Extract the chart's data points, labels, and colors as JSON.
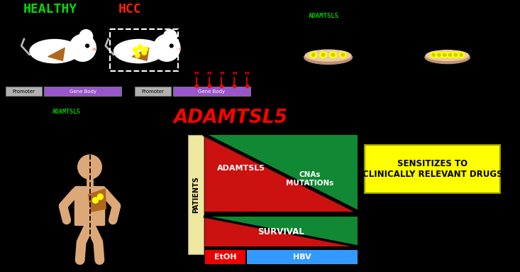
{
  "bg_color": "#000000",
  "title_healthy": "HEALTHY",
  "title_hcc": "HCC",
  "title_healthy_color": "#00dd00",
  "title_hcc_color": "#ff2200",
  "adamtsl5_top_color": "#00cc00",
  "adamtsl5_label": "ADAMTSL5",
  "adamtsl5_big_color": "#ff0000",
  "promoter_color": "#b0b0b0",
  "gene_body_color": "#9955cc",
  "patients_label": "PATIENTS",
  "etoh_color": "#ee0000",
  "etoh_label": "EtOH",
  "hbv_color": "#3399ff",
  "hbv_label": "HBV",
  "sensitizes_color": "#ffff00",
  "sensitizes_text": "SENSITIZES TO\nCLINICALLY RELEVANT DRUGS",
  "survival_label": "SURVIVAL",
  "adamtsl5_triangle_label": "ADAMTSL5",
  "cnas_label": "CNAs\nMUTATIONs",
  "methylation_color": "#ff0000",
  "person_skin_color": "#dda878",
  "liver_color": "#b06820",
  "patients_bg_color": "#f0e8a0",
  "white": "#ffffff",
  "black": "#000000",
  "yellow": "#ffff00",
  "dark_yellow": "#cccc00",
  "red_tri": "#cc1111",
  "green_tri": "#118833"
}
